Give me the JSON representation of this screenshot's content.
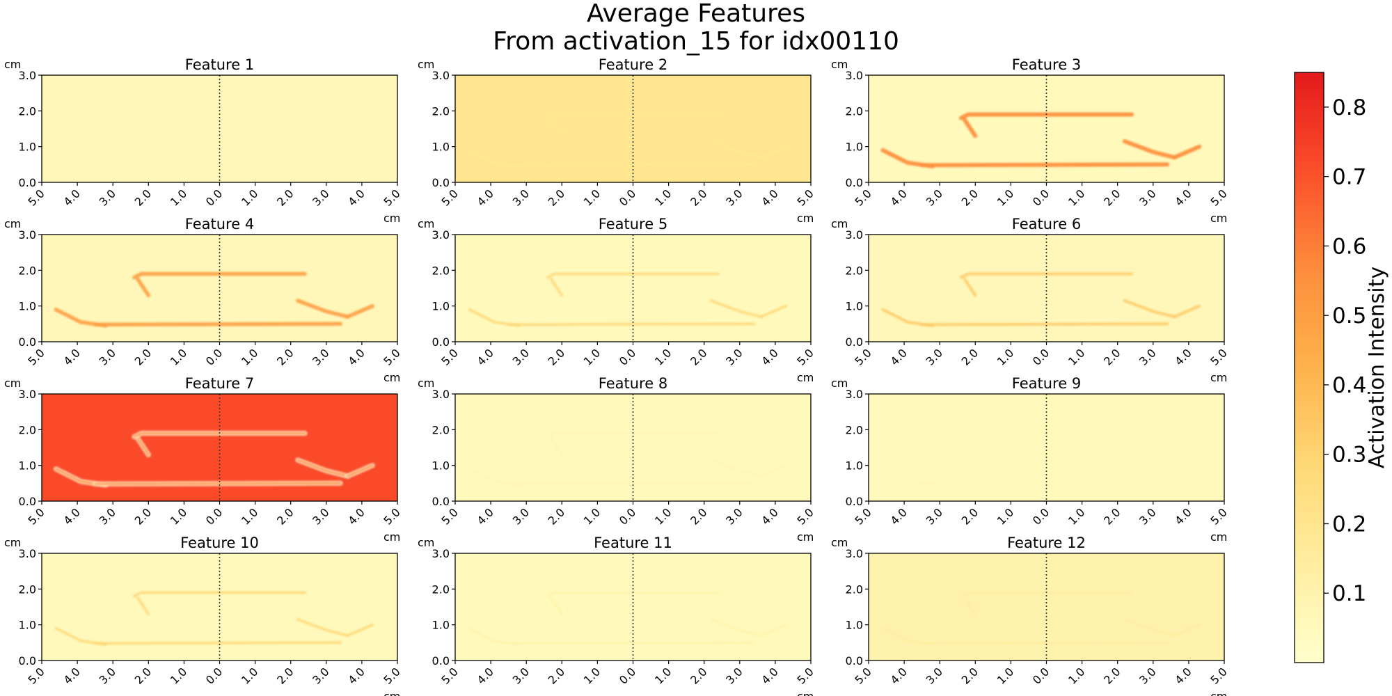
{
  "title": [
    "Average Features",
    "From activation_15 for idx00110"
  ],
  "colorbar": {
    "label": "Activation Intensity",
    "ticks": [
      "0.1",
      "0.2",
      "0.3",
      "0.4",
      "0.5",
      "0.6",
      "0.7",
      "0.8"
    ],
    "range": [
      0.0,
      0.85
    ],
    "colormap": [
      "#ffffcc",
      "#ffeda0",
      "#fed976",
      "#feb24c",
      "#fd8d3c",
      "#fc4e2a",
      "#e31a1c"
    ]
  },
  "chart_data": {
    "type": "heatmap",
    "grid": {
      "rows": 4,
      "cols": 3
    },
    "x_unit": "cm",
    "y_unit": "cm",
    "x_ticks": [
      "5.0",
      "4.0",
      "3.0",
      "2.0",
      "1.0",
      "0.0",
      "1.0",
      "2.0",
      "3.0",
      "4.0",
      "5.0"
    ],
    "y_ticks": [
      "0.0",
      "1.0",
      "2.0",
      "3.0"
    ],
    "xlim": [
      -5,
      5
    ],
    "ylim": [
      0,
      3
    ],
    "centerline_x": 0,
    "panels": [
      {
        "title": "Feature 1",
        "background": 0.06,
        "structure": 0.06
      },
      {
        "title": "Feature 2",
        "background": 0.2,
        "structure": 0.14
      },
      {
        "title": "Feature 3",
        "background": 0.05,
        "structure": 0.55
      },
      {
        "title": "Feature 4",
        "background": 0.06,
        "structure": 0.5
      },
      {
        "title": "Feature 5",
        "background": 0.05,
        "structure": 0.3
      },
      {
        "title": "Feature 6",
        "background": 0.06,
        "structure": 0.35
      },
      {
        "title": "Feature 7",
        "background": 0.72,
        "structure": 0.15
      },
      {
        "title": "Feature 8",
        "background": 0.05,
        "structure": 0.1
      },
      {
        "title": "Feature 9",
        "background": 0.05,
        "structure": 0.09
      },
      {
        "title": "Feature 10",
        "background": 0.05,
        "structure": 0.3
      },
      {
        "title": "Feature 11",
        "background": 0.05,
        "structure": 0.14
      },
      {
        "title": "Feature 12",
        "background": 0.1,
        "structure": 0.18
      }
    ]
  }
}
